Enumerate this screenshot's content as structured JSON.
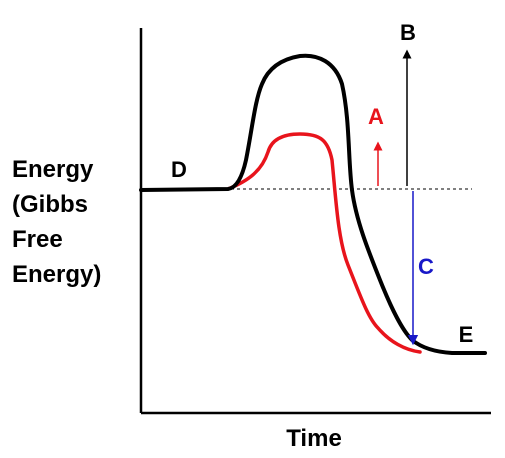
{
  "diagram": {
    "axes": {
      "x_label": "Time"
    },
    "y_label_lines": [
      "Energy",
      "(Gibbs",
      "Free",
      "Energy)"
    ],
    "labels": {
      "A": "A",
      "B": "B",
      "C": "C",
      "D": "D",
      "E": "E"
    },
    "colors": {
      "uncatalyzed_curve": "#000000",
      "catalyzed_curve": "#e8141c",
      "activation_energy_catalyzed": "#e8141c",
      "activation_energy_uncatalyzed": "#000000",
      "free_energy_change": "#1818c8",
      "reference_line": "#000000"
    }
  }
}
